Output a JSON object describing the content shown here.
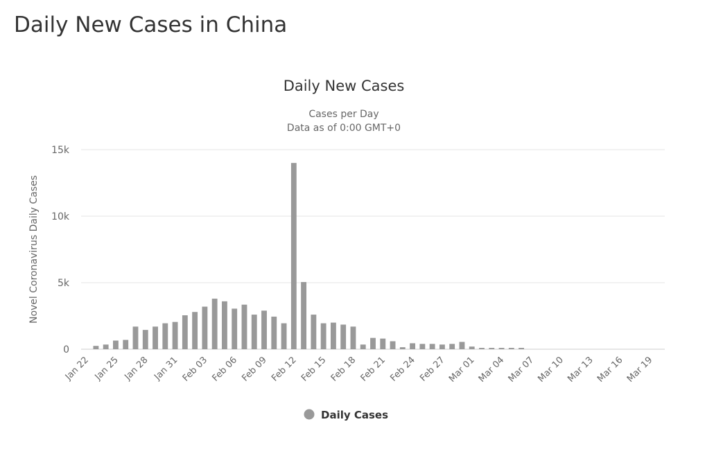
{
  "page": {
    "title": "Daily New Cases in China"
  },
  "chart_data": {
    "type": "bar",
    "title": "Daily New Cases",
    "subtitle_lines": [
      "Cases per Day",
      "Data as of 0:00 GMT+0"
    ],
    "xlabel": "",
    "ylabel": "Novel Coronavirus Daily Cases",
    "ylim": [
      0,
      15000
    ],
    "yticks": [
      0,
      5000,
      10000,
      15000
    ],
    "ytick_labels": [
      "0",
      "5k",
      "10k",
      "15k"
    ],
    "grid": true,
    "legend_position": "bottom-center",
    "bar_color": "#999999",
    "categories": [
      "Jan 22",
      "Jan 23",
      "Jan 24",
      "Jan 25",
      "Jan 26",
      "Jan 27",
      "Jan 28",
      "Jan 29",
      "Jan 30",
      "Jan 31",
      "Feb 01",
      "Feb 02",
      "Feb 03",
      "Feb 04",
      "Feb 05",
      "Feb 06",
      "Feb 07",
      "Feb 08",
      "Feb 09",
      "Feb 10",
      "Feb 11",
      "Feb 12",
      "Feb 13",
      "Feb 14",
      "Feb 15",
      "Feb 16",
      "Feb 17",
      "Feb 18",
      "Feb 19",
      "Feb 20",
      "Feb 21",
      "Feb 22",
      "Feb 23",
      "Feb 24",
      "Feb 25",
      "Feb 26",
      "Feb 27",
      "Feb 28",
      "Feb 29",
      "Mar 01",
      "Mar 02",
      "Mar 03",
      "Mar 04",
      "Mar 05",
      "Mar 06",
      "Mar 07",
      "Mar 08",
      "Mar 09",
      "Mar 10",
      "Mar 11",
      "Mar 12",
      "Mar 13",
      "Mar 14",
      "Mar 15",
      "Mar 16",
      "Mar 17",
      "Mar 18",
      "Mar 19",
      "Mar 20"
    ],
    "tick_labels": [
      "Jan 22",
      "Jan 25",
      "Jan 28",
      "Jan 31",
      "Feb 03",
      "Feb 06",
      "Feb 09",
      "Feb 12",
      "Feb 15",
      "Feb 18",
      "Feb 21",
      "Feb 24",
      "Feb 27",
      "Mar 01",
      "Mar 04",
      "Mar 07",
      "Mar 10",
      "Mar 13",
      "Mar 16",
      "Mar 19"
    ],
    "series": [
      {
        "name": "Daily Cases",
        "values": [
          0,
          250,
          350,
          650,
          700,
          1700,
          1450,
          1700,
          1950,
          2050,
          2550,
          2800,
          3200,
          3800,
          3600,
          3050,
          3350,
          2600,
          2900,
          2450,
          1950,
          14000,
          5050,
          2600,
          1950,
          2000,
          1850,
          1700,
          350,
          850,
          800,
          600,
          150,
          450,
          400,
          400,
          350,
          400,
          550,
          200,
          100,
          100,
          100,
          100,
          100,
          0,
          0,
          0,
          0,
          0,
          0,
          0,
          0,
          0,
          0,
          0,
          0,
          0,
          0
        ]
      }
    ]
  }
}
